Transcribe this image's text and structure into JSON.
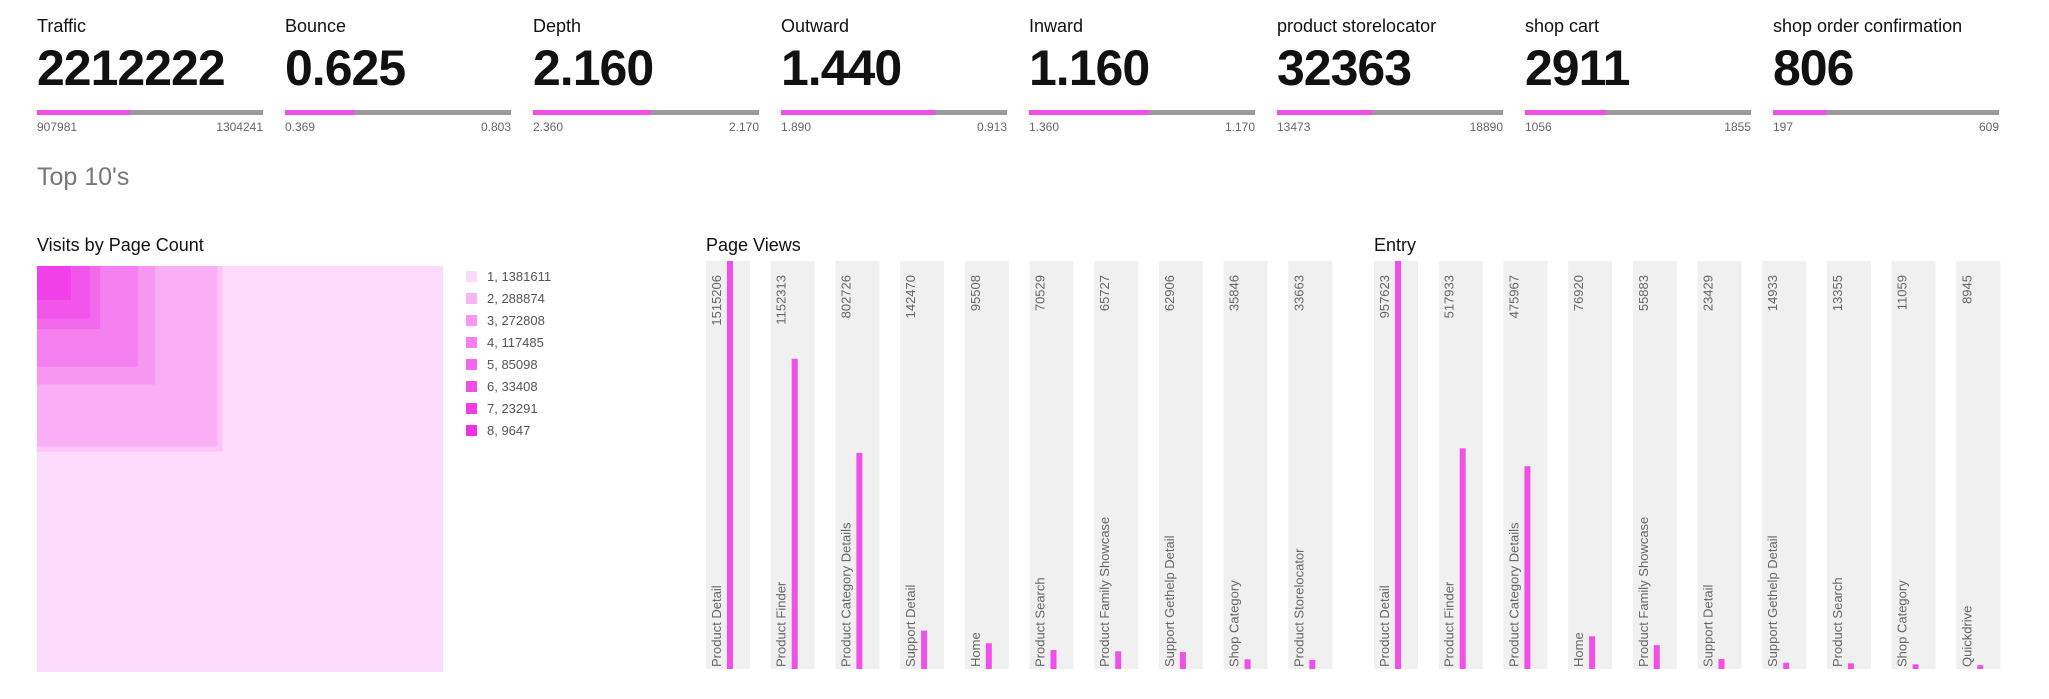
{
  "kpis": [
    {
      "title": "Traffic",
      "value": "2212222",
      "low": "907981",
      "high": "1304241",
      "fill": 0.41
    },
    {
      "title": "Bounce",
      "value": "0.625",
      "low": "0.369",
      "high": "0.803",
      "fill": 0.31
    },
    {
      "title": "Depth",
      "value": "2.160",
      "low": "2.360",
      "high": "2.170",
      "fill": 0.52
    },
    {
      "title": "Outward",
      "value": "1.440",
      "low": "1.890",
      "high": "0.913",
      "fill": 0.68
    },
    {
      "title": "Inward",
      "value": "1.160",
      "low": "1.360",
      "high": "1.170",
      "fill": 0.53
    },
    {
      "title": "product storelocator",
      "value": "32363",
      "low": "13473",
      "high": "18890",
      "fill": 0.42
    },
    {
      "title": "shop cart",
      "value": "2911",
      "low": "1056",
      "high": "1855",
      "fill": 0.36
    },
    {
      "title": "shop order confirmation",
      "value": "806",
      "low": "197",
      "high": "609",
      "fill": 0.24
    }
  ],
  "section_title": "Top 10's",
  "colors": {
    "accent": "#f050e8",
    "track": "#9a9a9a",
    "column_bg": "#f0f0f0"
  },
  "chart_data": [
    {
      "type": "treemap",
      "title": "Visits by Page Count",
      "legend": [
        "1, 1381611",
        "2, 288874",
        "3, 272808",
        "4, 117485",
        "5, 85098",
        "6, 33408",
        "7, 23291",
        "8, 9647"
      ],
      "categories": [
        "1",
        "2",
        "3",
        "4",
        "5",
        "6",
        "7",
        "8"
      ],
      "values": [
        1381611,
        288874,
        272808,
        117485,
        85098,
        33408,
        23291,
        9647
      ]
    },
    {
      "type": "bar",
      "title": "Page Views",
      "categories": [
        "Product Detail",
        "Product Finder",
        "Product Category Details",
        "Support Detail",
        "Home",
        "Product Search",
        "Product Family Showcase",
        "Support Gethelp Detail",
        "Shop Category",
        "Product Storelocator"
      ],
      "values": [
        1515206,
        1152313,
        802726,
        142470,
        95508,
        70529,
        65727,
        62906,
        35846,
        33663
      ]
    },
    {
      "type": "bar",
      "title": "Entry",
      "categories": [
        "Product Detail",
        "Product Finder",
        "Product Category Details",
        "Home",
        "Product Family Showcase",
        "Support Detail",
        "Support Gethelp Detail",
        "Product Search",
        "Shop Category",
        "Quickdrive"
      ],
      "values": [
        957623,
        517933,
        475967,
        76920,
        55883,
        23429,
        14933,
        13355,
        11059,
        8945
      ]
    }
  ]
}
